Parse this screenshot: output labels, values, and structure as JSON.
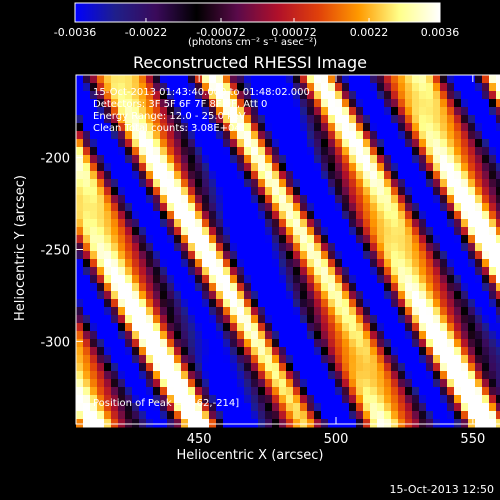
{
  "page": {
    "title": "Reconstructed RHESSI Image",
    "footer_timestamp": "15-Oct-2013 12:50"
  },
  "colorbar": {
    "ticks": [
      "-0.0036",
      "-0.0022",
      "-0.00072",
      "0.00072",
      "0.0022",
      "0.0036"
    ],
    "unit_label": "(photons cm⁻² s⁻¹ asec⁻²)",
    "range": [
      -0.0036,
      0.0036
    ],
    "colors": [
      "#0000ff",
      "#1f1f8a",
      "#3a0a5a",
      "#000000",
      "#5a0a4a",
      "#b0102a",
      "#e0400a",
      "#ff9a00",
      "#ffff8a",
      "#ffffff"
    ]
  },
  "annotations": {
    "time_range": "15-Oct-2013 01:43:40.000 to 01:48:02.000",
    "detectors": "Detectors: 3F 5F 6F 7F 8F 9F, Att 0",
    "energy_range": "Energy Range: 12.0 - 25.0 keV",
    "clean_counts": "Clean     Total counts: 3.08E+04",
    "peak_position": "Position of Peak = [462,-214]"
  },
  "chart_data": {
    "type": "heatmap",
    "title": "Reconstructed RHESSI Image",
    "xlabel": "Heliocentric X (arcsec)",
    "ylabel": "Heliocentric Y (arcsec)",
    "xlim": [
      405,
      595
    ],
    "ylim": [
      -345,
      -155
    ],
    "x_ticks": [
      450,
      500,
      550
    ],
    "y_ticks": [
      -200,
      -250,
      -300
    ],
    "value_range": [
      -0.0036,
      0.0036
    ],
    "peak": [
      462,
      -214
    ],
    "stripe_pattern": "diagonal bright/dark stripes running from lower-left to upper-right"
  }
}
